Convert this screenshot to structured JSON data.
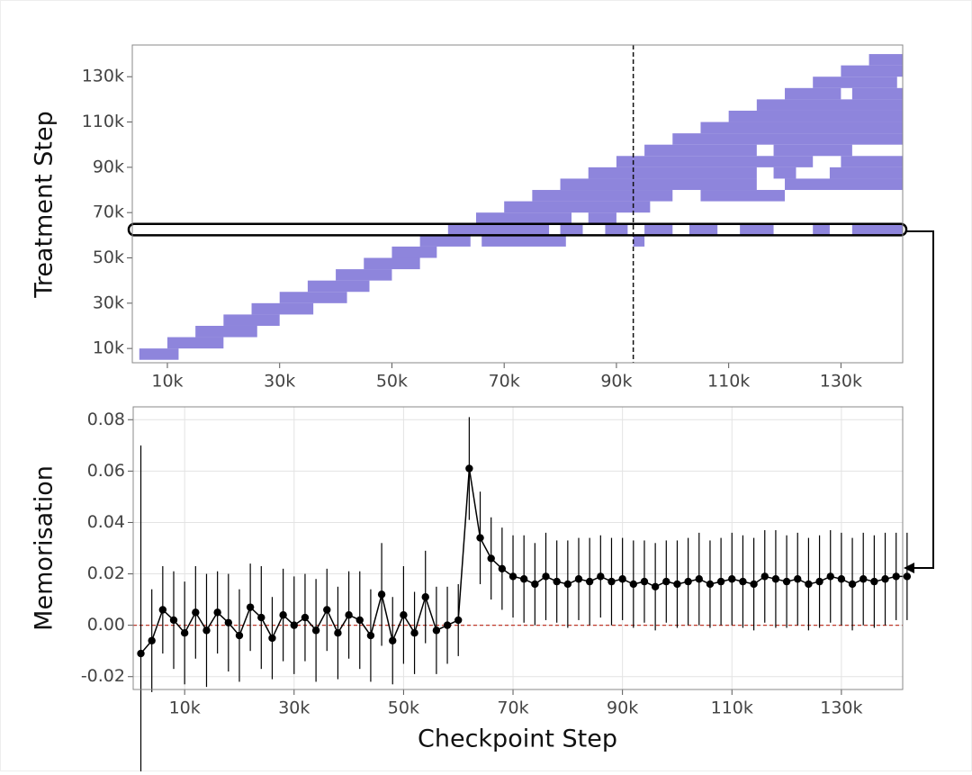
{
  "chart_data": [
    {
      "type": "heatmap",
      "y_label": "Treatment Step",
      "color": "#7a70d6",
      "xlim": [
        3750,
        141000
      ],
      "ylim": [
        3700,
        144000
      ],
      "xticks": [
        {
          "value": 10000,
          "label": "10k"
        },
        {
          "value": 30000,
          "label": "30k"
        },
        {
          "value": 50000,
          "label": "50k"
        },
        {
          "value": 70000,
          "label": "70k"
        },
        {
          "value": 90000,
          "label": "90k"
        },
        {
          "value": 110000,
          "label": "110k"
        },
        {
          "value": 130000,
          "label": "130k"
        }
      ],
      "yticks": [
        {
          "value": 10000,
          "label": "10k"
        },
        {
          "value": 30000,
          "label": "30k"
        },
        {
          "value": 50000,
          "label": "50k"
        },
        {
          "value": 70000,
          "label": "70k"
        },
        {
          "value": 90000,
          "label": "90k"
        },
        {
          "value": 110000,
          "label": "110k"
        },
        {
          "value": 130000,
          "label": "130k"
        }
      ],
      "vline": 93000,
      "highlight_row": 60000,
      "segments": [
        [
          5000,
          5000,
          12000
        ],
        [
          10000,
          10000,
          20000
        ],
        [
          15000,
          15000,
          26000
        ],
        [
          20000,
          20000,
          30000
        ],
        [
          25000,
          25000,
          36000
        ],
        [
          30000,
          30000,
          42000
        ],
        [
          35000,
          35000,
          46000
        ],
        [
          40000,
          40000,
          50000
        ],
        [
          45000,
          45000,
          55000
        ],
        [
          50000,
          50000,
          58000
        ],
        [
          55000,
          55000,
          64000
        ],
        [
          55000,
          66000,
          81000
        ],
        [
          55000,
          93000,
          95000
        ],
        [
          60000,
          60000,
          78000
        ],
        [
          60000,
          80000,
          84000
        ],
        [
          60000,
          88000,
          92000
        ],
        [
          60000,
          95000,
          100000
        ],
        [
          60000,
          103000,
          108000
        ],
        [
          60000,
          112000,
          118000
        ],
        [
          60000,
          125000,
          128000
        ],
        [
          60000,
          132000,
          141000
        ],
        [
          65000,
          65000,
          82000
        ],
        [
          65000,
          85000,
          90000
        ],
        [
          70000,
          70000,
          96000
        ],
        [
          75000,
          75000,
          100000
        ],
        [
          75000,
          105000,
          120000
        ],
        [
          80000,
          80000,
          115000
        ],
        [
          80000,
          120000,
          141000
        ],
        [
          85000,
          85000,
          115000
        ],
        [
          85000,
          118000,
          122000
        ],
        [
          85000,
          128000,
          141000
        ],
        [
          90000,
          90000,
          125000
        ],
        [
          90000,
          130000,
          141000
        ],
        [
          95000,
          95000,
          115000
        ],
        [
          95000,
          118000,
          132000
        ],
        [
          100000,
          100000,
          141000
        ],
        [
          105000,
          105000,
          141000
        ],
        [
          110000,
          110000,
          141000
        ],
        [
          115000,
          115000,
          141000
        ],
        [
          120000,
          120000,
          130000
        ],
        [
          120000,
          132000,
          141000
        ],
        [
          125000,
          125000,
          140000
        ],
        [
          130000,
          130000,
          141000
        ],
        [
          135000,
          135000,
          141000
        ]
      ]
    },
    {
      "type": "errorbar",
      "x_label": "Checkpoint Step",
      "y_label": "Memorisation",
      "color": "#000000",
      "grid": true,
      "reference_line": 0,
      "reference_color": "#c0392b",
      "xlim": [
        600,
        141200
      ],
      "ylim": [
        -0.025,
        0.085
      ],
      "xticks": [
        {
          "value": 10000,
          "label": "10k"
        },
        {
          "value": 30000,
          "label": "30k"
        },
        {
          "value": 50000,
          "label": "50k"
        },
        {
          "value": 70000,
          "label": "70k"
        },
        {
          "value": 90000,
          "label": "90k"
        },
        {
          "value": 110000,
          "label": "110k"
        },
        {
          "value": 130000,
          "label": "130k"
        }
      ],
      "yticks": [
        -0.02,
        {
          "value": 0,
          "label": "0.00"
        },
        0.02,
        0.04,
        0.06,
        0.08
      ],
      "x": [
        2000,
        4000,
        6000,
        8000,
        10000,
        12000,
        14000,
        16000,
        18000,
        20000,
        22000,
        24000,
        26000,
        28000,
        30000,
        32000,
        34000,
        36000,
        38000,
        40000,
        42000,
        44000,
        46000,
        48000,
        50000,
        52000,
        54000,
        56000,
        58000,
        60000,
        62000,
        64000,
        66000,
        68000,
        70000,
        72000,
        74000,
        76000,
        78000,
        80000,
        82000,
        84000,
        86000,
        88000,
        90000,
        92000,
        94000,
        96000,
        98000,
        100000,
        102000,
        104000,
        106000,
        108000,
        110000,
        112000,
        114000,
        116000,
        118000,
        120000,
        122000,
        124000,
        126000,
        128000,
        130000,
        132000,
        134000,
        136000,
        138000,
        140000,
        142000
      ],
      "values": [
        -0.011,
        -0.006,
        0.006,
        0.002,
        -0.003,
        0.005,
        -0.002,
        0.005,
        0.001,
        -0.004,
        0.007,
        0.003,
        -0.005,
        0.004,
        0.0,
        0.003,
        -0.002,
        0.006,
        -0.003,
        0.004,
        0.002,
        -0.004,
        0.012,
        -0.006,
        0.004,
        -0.003,
        0.011,
        -0.002,
        0.0,
        0.002,
        0.061,
        0.034,
        0.026,
        0.022,
        0.019,
        0.018,
        0.016,
        0.019,
        0.017,
        0.016,
        0.018,
        0.017,
        0.019,
        0.017,
        0.018,
        0.016,
        0.017,
        0.015,
        0.017,
        0.016,
        0.017,
        0.018,
        0.016,
        0.017,
        0.018,
        0.017,
        0.016,
        0.019,
        0.018,
        0.017,
        0.018,
        0.016,
        0.017,
        0.019,
        0.018,
        0.016,
        0.018,
        0.017,
        0.018,
        0.019,
        0.019
      ],
      "errors": [
        0.081,
        0.02,
        0.017,
        0.019,
        0.02,
        0.018,
        0.022,
        0.016,
        0.019,
        0.018,
        0.017,
        0.02,
        0.016,
        0.018,
        0.019,
        0.017,
        0.02,
        0.016,
        0.018,
        0.017,
        0.019,
        0.018,
        0.02,
        0.017,
        0.019,
        0.016,
        0.018,
        0.017,
        0.015,
        0.014,
        0.02,
        0.018,
        0.016,
        0.016,
        0.016,
        0.017,
        0.016,
        0.017,
        0.016,
        0.017,
        0.016,
        0.017,
        0.016,
        0.017,
        0.016,
        0.017,
        0.016,
        0.017,
        0.016,
        0.017,
        0.017,
        0.018,
        0.017,
        0.017,
        0.018,
        0.018,
        0.018,
        0.018,
        0.019,
        0.018,
        0.018,
        0.018,
        0.018,
        0.018,
        0.018,
        0.018,
        0.018,
        0.018,
        0.018,
        0.017,
        0.017
      ]
    }
  ]
}
